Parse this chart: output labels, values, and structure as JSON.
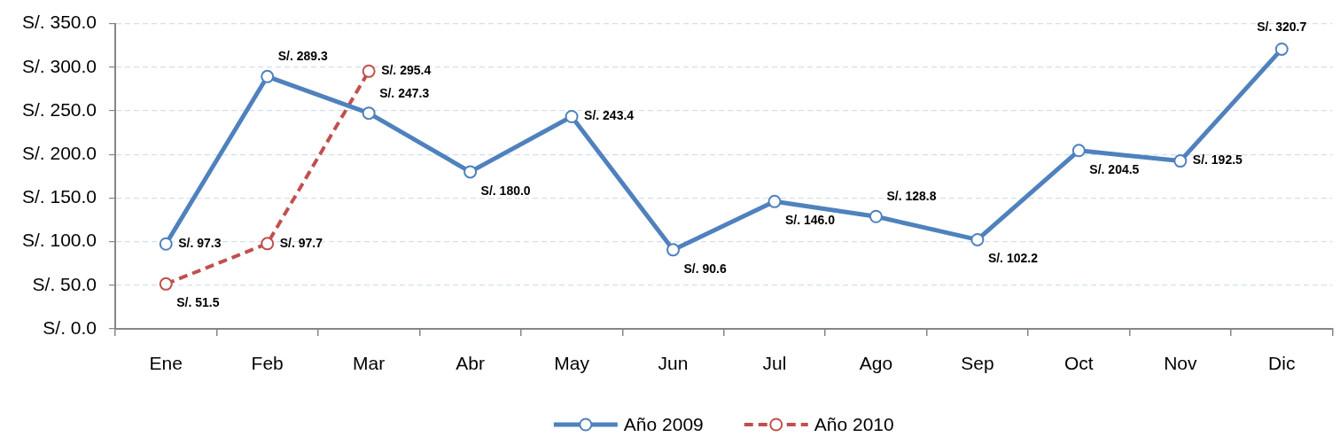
{
  "chart_data": {
    "type": "line",
    "categories": [
      "Ene",
      "Feb",
      "Mar",
      "Abr",
      "May",
      "Jun",
      "Jul",
      "Ago",
      "Sep",
      "Oct",
      "Nov",
      "Dic"
    ],
    "series": [
      {
        "name": "Año 2009",
        "color": "#4f81bd",
        "line_style": "solid",
        "values": [
          97.3,
          289.3,
          247.3,
          180.0,
          243.4,
          90.6,
          146.0,
          128.8,
          102.2,
          204.5,
          192.5,
          320.7
        ],
        "value_labels": [
          "S/. 97.3",
          "S/. 289.3",
          "S/. 247.3",
          "S/. 180.0",
          "S/. 243.4",
          "S/. 90.6",
          "S/. 146.0",
          "S/. 128.8",
          "S/. 102.2",
          "S/. 204.5",
          "S/. 192.5",
          "S/. 320.7"
        ]
      },
      {
        "name": "Año 2010",
        "color": "#c0504d",
        "line_style": "dashed",
        "values": [
          51.5,
          97.7,
          295.4,
          null,
          null,
          null,
          null,
          null,
          null,
          null,
          null,
          null
        ],
        "value_labels": [
          "S/. 51.5",
          "S/. 97.7",
          "S/. 295.4",
          null,
          null,
          null,
          null,
          null,
          null,
          null,
          null,
          null
        ]
      }
    ],
    "ylim": [
      0,
      350
    ],
    "yticks": [
      {
        "value": 0,
        "label": "S/. 0.0"
      },
      {
        "value": 50,
        "label": "S/. 50.0"
      },
      {
        "value": 100,
        "label": "S/. 100.0"
      },
      {
        "value": 150,
        "label": "S/. 150.0"
      },
      {
        "value": 200,
        "label": "S/. 200.0"
      },
      {
        "value": 250,
        "label": "S/. 250.0"
      },
      {
        "value": 300,
        "label": "S/. 300.0"
      },
      {
        "value": 350,
        "label": "S/. 350.0"
      }
    ],
    "grid": "y",
    "legend": "bottom",
    "marker": "circle"
  }
}
